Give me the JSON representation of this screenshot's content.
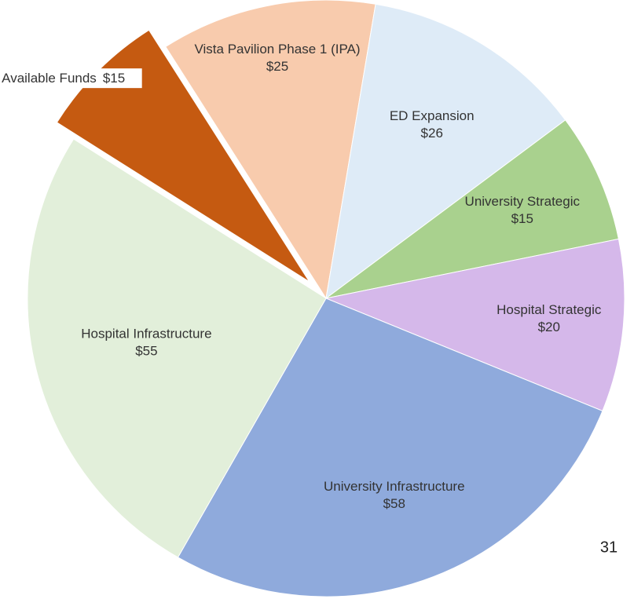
{
  "chart_data": {
    "type": "pie",
    "categories": [
      "Vista Pavilion Phase 1 (IPA)",
      "ED Expansion",
      "University Strategic",
      "Hospital Strategic",
      "University Infrastructure",
      "Hospital Infrastructure",
      "Available Funds"
    ],
    "values": [
      25,
      26,
      15,
      20,
      58,
      55,
      15
    ],
    "value_labels": [
      "$25",
      "$26",
      "$15",
      "$20",
      "$58",
      "$55",
      "$15"
    ],
    "colors": [
      "#f8cbad",
      "#deebf7",
      "#a9d18e",
      "#d5b8ea",
      "#8faadc",
      "#e2efda",
      "#c55a11"
    ],
    "exploded": "Available Funds"
  },
  "page_number": "31"
}
